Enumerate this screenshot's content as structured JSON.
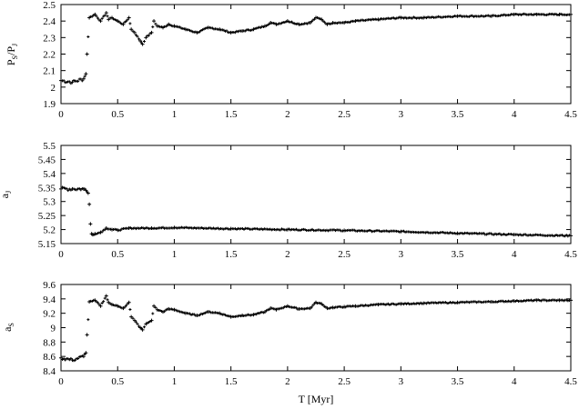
{
  "chart_data": [
    {
      "type": "scatter",
      "id": "ps_pj",
      "ylabel": "P_S/P_J",
      "xlim": [
        0,
        4.5
      ],
      "ylim": [
        1.9,
        2.5
      ],
      "xticks": [
        0,
        0.5,
        1,
        1.5,
        2,
        2.5,
        3,
        3.5,
        4,
        4.5
      ],
      "xtick_labels": [
        "0",
        "0.5",
        "1",
        "1.5",
        "2",
        "2.5",
        "3",
        "3.5",
        "4",
        "4.5"
      ],
      "yticks": [
        1.9,
        2,
        2.1,
        2.2,
        2.3,
        2.4,
        2.5
      ],
      "ytick_labels": [
        "1.9",
        "2",
        "2.1",
        "2.2",
        "2.3",
        "2.4",
        "2.5"
      ],
      "series": [
        {
          "marker": "+",
          "x": [
            0,
            0.1,
            0.2,
            0.22,
            0.23,
            0.25,
            0.3,
            0.35,
            0.4,
            0.42,
            0.45,
            0.5,
            0.55,
            0.6,
            0.62,
            0.65,
            0.7,
            0.72,
            0.75,
            0.8,
            0.82,
            0.85,
            0.9,
            0.95,
            1.0,
            1.1,
            1.2,
            1.3,
            1.4,
            1.5,
            1.6,
            1.7,
            1.8,
            1.85,
            1.9,
            2.0,
            2.1,
            2.2,
            2.25,
            2.3,
            2.35,
            2.4,
            2.5,
            2.6,
            2.8,
            3.0,
            3.2,
            3.5,
            3.8,
            4.0,
            4.2,
            4.4,
            4.5
          ],
          "y": [
            2.04,
            2.03,
            2.05,
            2.08,
            2.2,
            2.42,
            2.44,
            2.4,
            2.45,
            2.41,
            2.42,
            2.4,
            2.38,
            2.42,
            2.35,
            2.33,
            2.28,
            2.26,
            2.3,
            2.33,
            2.4,
            2.37,
            2.36,
            2.38,
            2.37,
            2.35,
            2.33,
            2.36,
            2.35,
            2.33,
            2.34,
            2.35,
            2.37,
            2.39,
            2.38,
            2.4,
            2.38,
            2.39,
            2.42,
            2.41,
            2.38,
            2.39,
            2.39,
            2.4,
            2.41,
            2.42,
            2.42,
            2.43,
            2.43,
            2.44,
            2.44,
            2.44,
            2.44
          ]
        }
      ]
    },
    {
      "type": "scatter",
      "id": "aj",
      "ylabel": "a_J",
      "xlim": [
        0,
        4.5
      ],
      "ylim": [
        5.15,
        5.5
      ],
      "xticks": [
        0,
        0.5,
        1,
        1.5,
        2,
        2.5,
        3,
        3.5,
        4,
        4.5
      ],
      "xtick_labels": [
        "0",
        "0.5",
        "1",
        "1.5",
        "2",
        "2.5",
        "3",
        "3.5",
        "4",
        "4.5"
      ],
      "yticks": [
        5.15,
        5.2,
        5.25,
        5.3,
        5.35,
        5.4,
        5.45,
        5.5
      ],
      "ytick_labels": [
        "5.15",
        "5.2",
        "5.25",
        "5.3",
        "5.35",
        "5.4",
        "5.45",
        "5.5"
      ],
      "series": [
        {
          "marker": "+",
          "x": [
            0,
            0.1,
            0.2,
            0.22,
            0.24,
            0.25,
            0.26,
            0.27,
            0.28,
            0.3,
            0.35,
            0.4,
            0.45,
            0.5,
            0.6,
            0.8,
            1.0,
            1.5,
            2.0,
            2.5,
            3.0,
            3.5,
            4.0,
            4.5
          ],
          "y": [
            5.345,
            5.345,
            5.345,
            5.34,
            5.33,
            5.29,
            5.22,
            5.185,
            5.182,
            5.185,
            5.19,
            5.205,
            5.2,
            5.198,
            5.205,
            5.205,
            5.207,
            5.203,
            5.2,
            5.197,
            5.193,
            5.187,
            5.182,
            5.178
          ]
        }
      ]
    },
    {
      "type": "scatter",
      "id": "as",
      "ylabel": "a_S",
      "xlabel": "T [Myr]",
      "xlim": [
        0,
        4.5
      ],
      "ylim": [
        8.4,
        9.6
      ],
      "xticks": [
        0,
        0.5,
        1,
        1.5,
        2,
        2.5,
        3,
        3.5,
        4,
        4.5
      ],
      "xtick_labels": [
        "0",
        "0.5",
        "1",
        "1.5",
        "2",
        "2.5",
        "3",
        "3.5",
        "4",
        "4.5"
      ],
      "yticks": [
        8.4,
        8.6,
        8.8,
        9,
        9.2,
        9.4,
        9.6
      ],
      "ytick_labels": [
        "8.4",
        "8.6",
        "8.8",
        "9",
        "9.2",
        "9.4",
        "9.6"
      ],
      "series": [
        {
          "marker": "+",
          "x": [
            0,
            0.1,
            0.2,
            0.22,
            0.23,
            0.25,
            0.3,
            0.35,
            0.4,
            0.42,
            0.45,
            0.5,
            0.55,
            0.6,
            0.62,
            0.65,
            0.7,
            0.72,
            0.75,
            0.8,
            0.82,
            0.85,
            0.9,
            0.95,
            1.0,
            1.1,
            1.2,
            1.3,
            1.4,
            1.5,
            1.6,
            1.7,
            1.8,
            1.85,
            1.9,
            2.0,
            2.1,
            2.2,
            2.25,
            2.3,
            2.35,
            2.4,
            2.5,
            2.6,
            2.8,
            3.0,
            3.2,
            3.5,
            3.8,
            4.0,
            4.2,
            4.4,
            4.5
          ],
          "y": [
            8.58,
            8.55,
            8.6,
            8.65,
            8.9,
            9.36,
            9.38,
            9.3,
            9.44,
            9.35,
            9.32,
            9.3,
            9.27,
            9.35,
            9.15,
            9.1,
            9.0,
            8.97,
            9.05,
            9.1,
            9.3,
            9.25,
            9.22,
            9.26,
            9.25,
            9.2,
            9.17,
            9.22,
            9.2,
            9.15,
            9.17,
            9.18,
            9.22,
            9.27,
            9.25,
            9.3,
            9.26,
            9.27,
            9.35,
            9.33,
            9.27,
            9.28,
            9.29,
            9.3,
            9.32,
            9.33,
            9.34,
            9.35,
            9.36,
            9.37,
            9.38,
            9.38,
            9.38
          ]
        }
      ]
    }
  ]
}
